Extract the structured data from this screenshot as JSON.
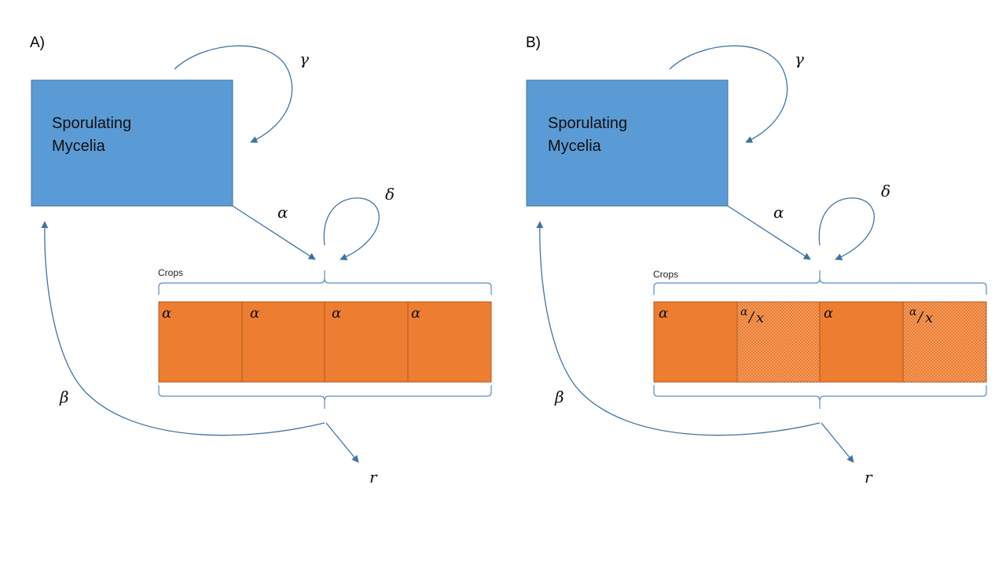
{
  "colors": {
    "mycelia_box": "#5b9bd5",
    "mycelia_border": "#41719c",
    "crop_fill": "#ed7d31",
    "crop_border": "#ae5a21",
    "arrow": "#3f73a3",
    "brace": "#5b8cc1"
  },
  "panels": [
    {
      "label": "A)",
      "box_label_line1": "Sporulating",
      "box_label_line2": "Mycelia",
      "crops_label": "Crops",
      "rates": {
        "gamma": "γ",
        "alpha": "α",
        "delta": "δ",
        "beta": "β",
        "r": "r"
      },
      "cells": [
        {
          "type": "full",
          "text": "α"
        },
        {
          "type": "full",
          "text": "α"
        },
        {
          "type": "full",
          "text": "α"
        },
        {
          "type": "full",
          "text": "α"
        }
      ]
    },
    {
      "label": "B)",
      "box_label_line1": "Sporulating",
      "box_label_line2": "Mycelia",
      "crops_label": "Crops",
      "rates": {
        "gamma": "γ",
        "alpha": "α",
        "delta": "δ",
        "beta": "β",
        "r": "r"
      },
      "cells": [
        {
          "type": "full",
          "text": "α"
        },
        {
          "type": "reduced",
          "numerator": "α",
          "slash": "/",
          "denominator": "x"
        },
        {
          "type": "full",
          "text": "α"
        },
        {
          "type": "reduced",
          "numerator": "α",
          "slash": "/",
          "denominator": "x"
        }
      ]
    }
  ]
}
